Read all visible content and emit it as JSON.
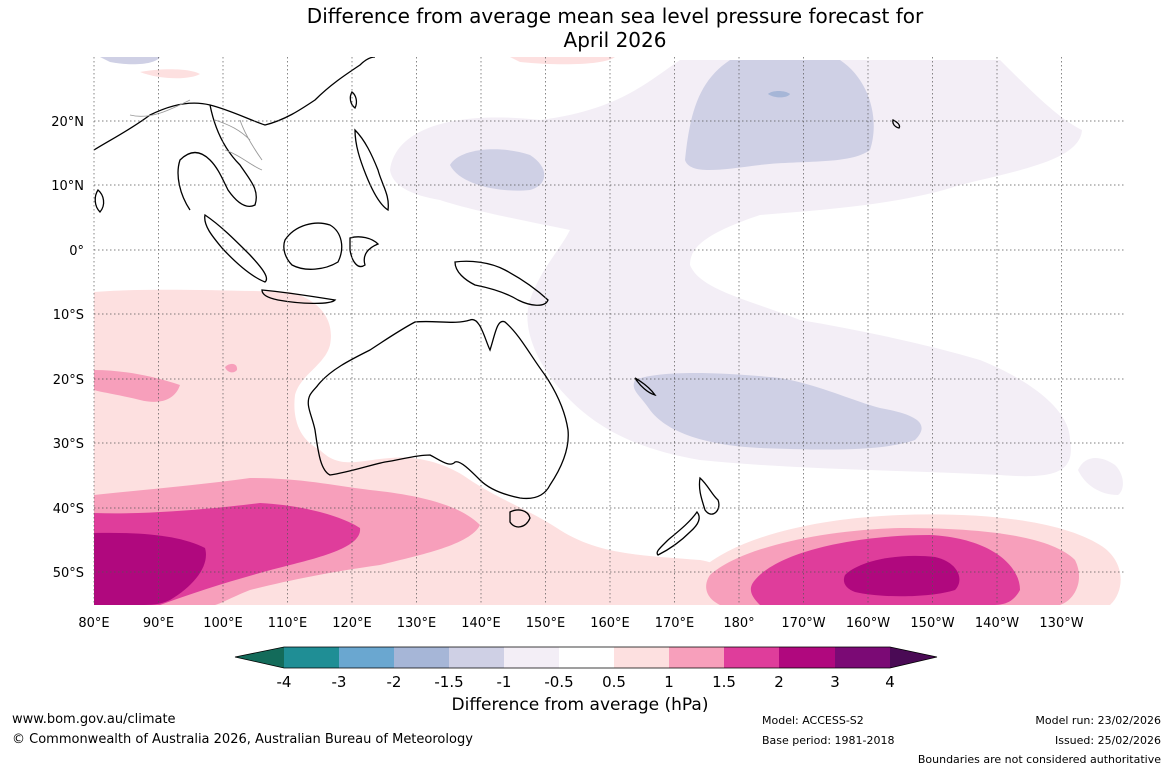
{
  "title": {
    "line1": "Difference from average mean sea level pressure forecast for",
    "line2": "April 2026"
  },
  "map": {
    "lon_ticks": [
      "80°E",
      "90°E",
      "100°E",
      "110°E",
      "120°E",
      "130°E",
      "140°E",
      "150°E",
      "160°E",
      "170°E",
      "180°",
      "170°W",
      "160°W",
      "150°W",
      "140°W",
      "130°W"
    ],
    "lat_ticks": [
      "20°N",
      "10°N",
      "0°",
      "10°S",
      "20°S",
      "30°S",
      "40°S",
      "50°S"
    ],
    "colors": {
      "land_outline": "#000000",
      "border": "#999999",
      "grid": "#555555"
    }
  },
  "colorbar": {
    "title": "Difference from average (hPa)",
    "tick_labels": [
      "-4",
      "-3",
      "-2",
      "-1.5",
      "-1",
      "-0.5",
      "0.5",
      "1",
      "1.5",
      "2",
      "3",
      "4"
    ],
    "colors": [
      "#136b5a",
      "#1f8e95",
      "#6aa7d0",
      "#a6b6d7",
      "#cfd0e5",
      "#f3eef6",
      "#ffffff",
      "#fde0e0",
      "#f79fbb",
      "#df3d9b",
      "#b0087e",
      "#7b0a75",
      "#4a0a55"
    ]
  },
  "footer": {
    "website": "www.bom.gov.au/climate",
    "copyright": "© Commonwealth of Australia 2026, Australian Bureau of Meteorology",
    "model": "Model: ACCESS-S2",
    "base_period": "Base period: 1981-2018",
    "model_run": "Model run: 23/02/2026",
    "issued": "Issued: 25/02/2026",
    "disclaimer": "Boundaries are not considered authoritative"
  }
}
